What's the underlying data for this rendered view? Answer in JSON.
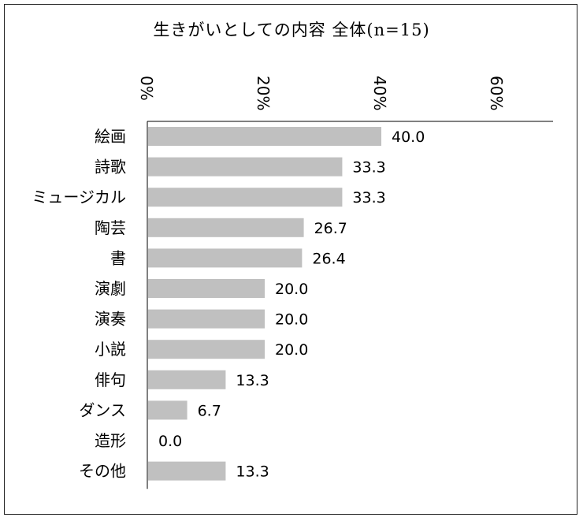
{
  "chart_data": {
    "type": "bar",
    "orientation": "horizontal",
    "title": "生きがいとしての内容 全体(n=15)",
    "xlabel": "",
    "ylabel": "",
    "xlim": [
      0,
      70
    ],
    "ticks": [
      0,
      20,
      40,
      60
    ],
    "tick_labels": [
      "0%",
      "20%",
      "40%",
      "60%"
    ],
    "tick_position": "top",
    "categories": [
      "絵画",
      "詩歌",
      "ミュージカル",
      "陶芸",
      "書",
      "演劇",
      "演奏",
      "小説",
      "俳句",
      "ダンス",
      "造形",
      "その他"
    ],
    "values": [
      40.0,
      33.3,
      33.3,
      26.7,
      26.4,
      20.0,
      20.0,
      20.0,
      13.3,
      6.7,
      0.0,
      13.3
    ],
    "value_labels": [
      "40.0",
      "33.3",
      "33.3",
      "26.7",
      "26.4",
      "20.0",
      "20.0",
      "20.0",
      "13.3",
      "6.7",
      "0.0",
      "13.3"
    ],
    "bar_color": "#c0c0c0",
    "grid": false
  }
}
